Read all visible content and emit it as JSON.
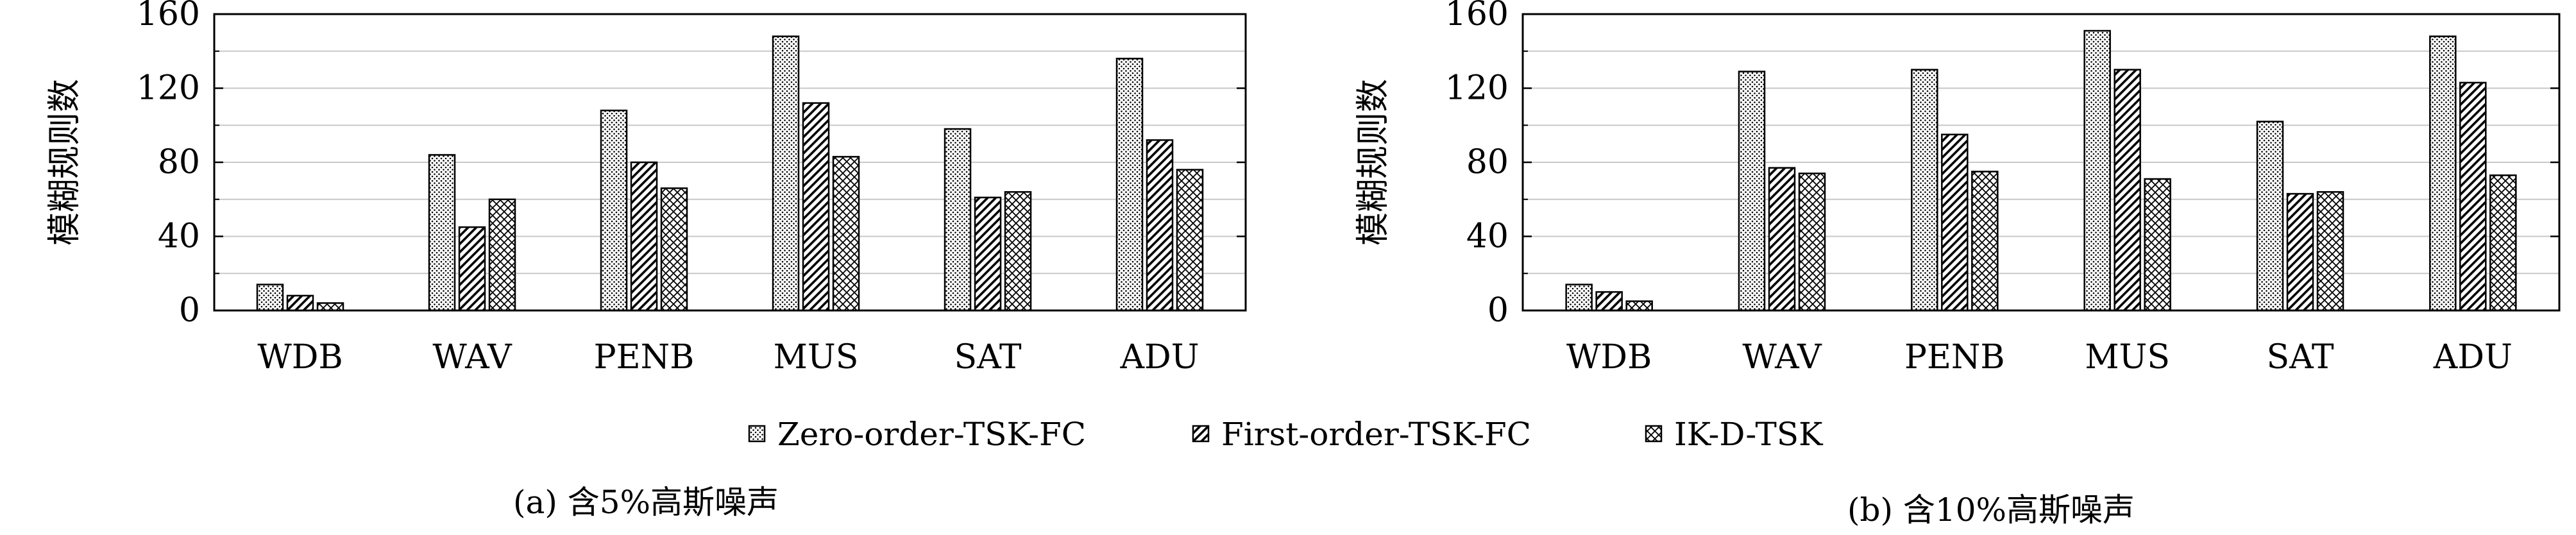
{
  "chart_data": [
    {
      "type": "bar",
      "caption": "(a) 含5%高斯噪声",
      "ylabel": "模糊规则数",
      "ylim": [
        0,
        160
      ],
      "yticks": [
        0,
        40,
        80,
        120,
        160
      ],
      "categories": [
        "WDB",
        "WAV",
        "PENB",
        "MUS",
        "SAT",
        "ADU"
      ],
      "grid": "horizontal",
      "series": [
        {
          "name": "Zero-order-TSK-FC",
          "pattern": "dots",
          "values": [
            14,
            84,
            108,
            148,
            98,
            136
          ]
        },
        {
          "name": "First-order-TSK-FC",
          "pattern": "diagonal",
          "values": [
            8,
            45,
            80,
            112,
            61,
            92
          ]
        },
        {
          "name": "IK-D-TSK",
          "pattern": "crosshatch",
          "values": [
            4,
            60,
            66,
            83,
            64,
            76
          ]
        }
      ]
    },
    {
      "type": "bar",
      "caption": "(b) 含10%高斯噪声",
      "ylabel": "模糊规则数",
      "ylim": [
        0,
        160
      ],
      "yticks": [
        0,
        40,
        80,
        120,
        160
      ],
      "categories": [
        "WDB",
        "WAV",
        "PENB",
        "MUS",
        "SAT",
        "ADU"
      ],
      "grid": "horizontal",
      "series": [
        {
          "name": "Zero-order-TSK-FC",
          "pattern": "dots",
          "values": [
            14,
            129,
            130,
            151,
            102,
            148
          ]
        },
        {
          "name": "First-order-TSK-FC",
          "pattern": "diagonal",
          "values": [
            10,
            77,
            95,
            130,
            63,
            123
          ]
        },
        {
          "name": "IK-D-TSK",
          "pattern": "crosshatch",
          "values": [
            5,
            74,
            75,
            71,
            64,
            73
          ]
        }
      ]
    }
  ],
  "legend": {
    "placement": "bottom-center",
    "items": [
      {
        "label": "Zero-order-TSK-FC",
        "pattern": "dots"
      },
      {
        "label": "First-order-TSK-FC",
        "pattern": "diagonal"
      },
      {
        "label": "IK-D-TSK",
        "pattern": "crosshatch"
      }
    ]
  }
}
